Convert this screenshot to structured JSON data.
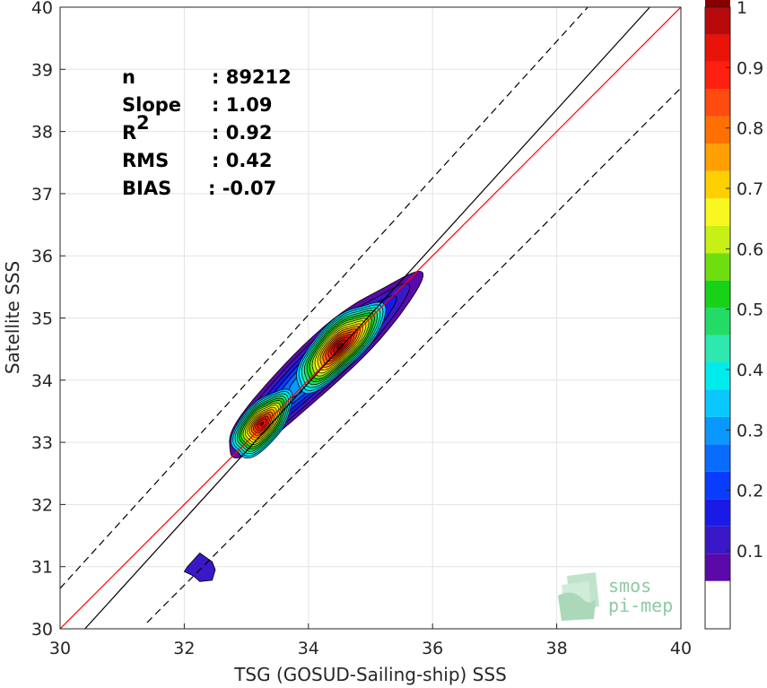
{
  "chart_data": {
    "type": "scatter",
    "subtype": "density-contour",
    "xlabel": "TSG (GOSUD-Sailing-ship) SSS",
    "ylabel": "Satellite SSS",
    "xlim": [
      30,
      40
    ],
    "ylim": [
      30,
      40
    ],
    "xticks": [
      "30",
      "32",
      "34",
      "36",
      "38",
      "40"
    ],
    "yticks": [
      "30",
      "31",
      "32",
      "33",
      "34",
      "35",
      "36",
      "37",
      "38",
      "39",
      "40"
    ],
    "grid": true,
    "stats": [
      {
        "label": "n",
        "value": ": 89212"
      },
      {
        "label": "Slope",
        "value": ": 1.09"
      },
      {
        "label": "R",
        "sup": "2",
        "value": ": 0.92"
      },
      {
        "label": "RMS",
        "value": ": 0.42"
      },
      {
        "label": "BIAS",
        "value": ": -0.07"
      }
    ],
    "lines": [
      {
        "kind": "one-to-one",
        "color": "#ff0000",
        "points": [
          [
            30,
            30
          ],
          [
            40,
            40
          ]
        ]
      },
      {
        "kind": "regression",
        "color": "#000000",
        "points": [
          [
            30.4,
            30
          ],
          [
            39.5,
            40
          ]
        ]
      },
      {
        "kind": "upper-bound",
        "color": "#000000",
        "dashed": true,
        "points": [
          [
            30,
            30.65
          ],
          [
            38.5,
            40
          ]
        ]
      },
      {
        "kind": "lower-bound",
        "color": "#000000",
        "dashed": true,
        "points": [
          [
            31.4,
            30.1
          ],
          [
            40,
            38.7
          ]
        ]
      }
    ],
    "density_clusters": [
      {
        "name": "lower cluster",
        "center": [
          33.2,
          33.3
        ],
        "peak": 0.95
      },
      {
        "name": "upper cluster",
        "center": [
          34.5,
          34.5
        ],
        "peak": 1.0
      },
      {
        "name": "small blob",
        "center": [
          32.2,
          30.95
        ],
        "peak": 0.12
      }
    ],
    "colorbar": {
      "levels": [
        0.05,
        0.1,
        0.15,
        0.2,
        0.25,
        0.3,
        0.35,
        0.4,
        0.45,
        0.5,
        0.55,
        0.6,
        0.65,
        0.7,
        0.75,
        0.8,
        0.85,
        0.9,
        0.95,
        1.0
      ],
      "ticks": [
        "0.1",
        "0.2",
        "0.3",
        "0.4",
        "0.5",
        "0.6",
        "0.7",
        "0.8",
        "0.9",
        "1"
      ],
      "range": [
        0,
        1
      ],
      "colors": [
        "#ffffff",
        "#5a0aa8",
        "#3a18c8",
        "#1a1ae6",
        "#0a3cff",
        "#0a6cff",
        "#0a98ff",
        "#0ac8ff",
        "#00ecec",
        "#2ee8b0",
        "#22dc66",
        "#18d218",
        "#6fde10",
        "#c8f016",
        "#f8f820",
        "#ffd000",
        "#ffa000",
        "#ff7000",
        "#ff4a10",
        "#ff1f10",
        "#e8140a",
        "#b80a0a",
        "#8a0000"
      ]
    }
  },
  "logo": {
    "line1": "smos",
    "line2": "pi-mep"
  }
}
